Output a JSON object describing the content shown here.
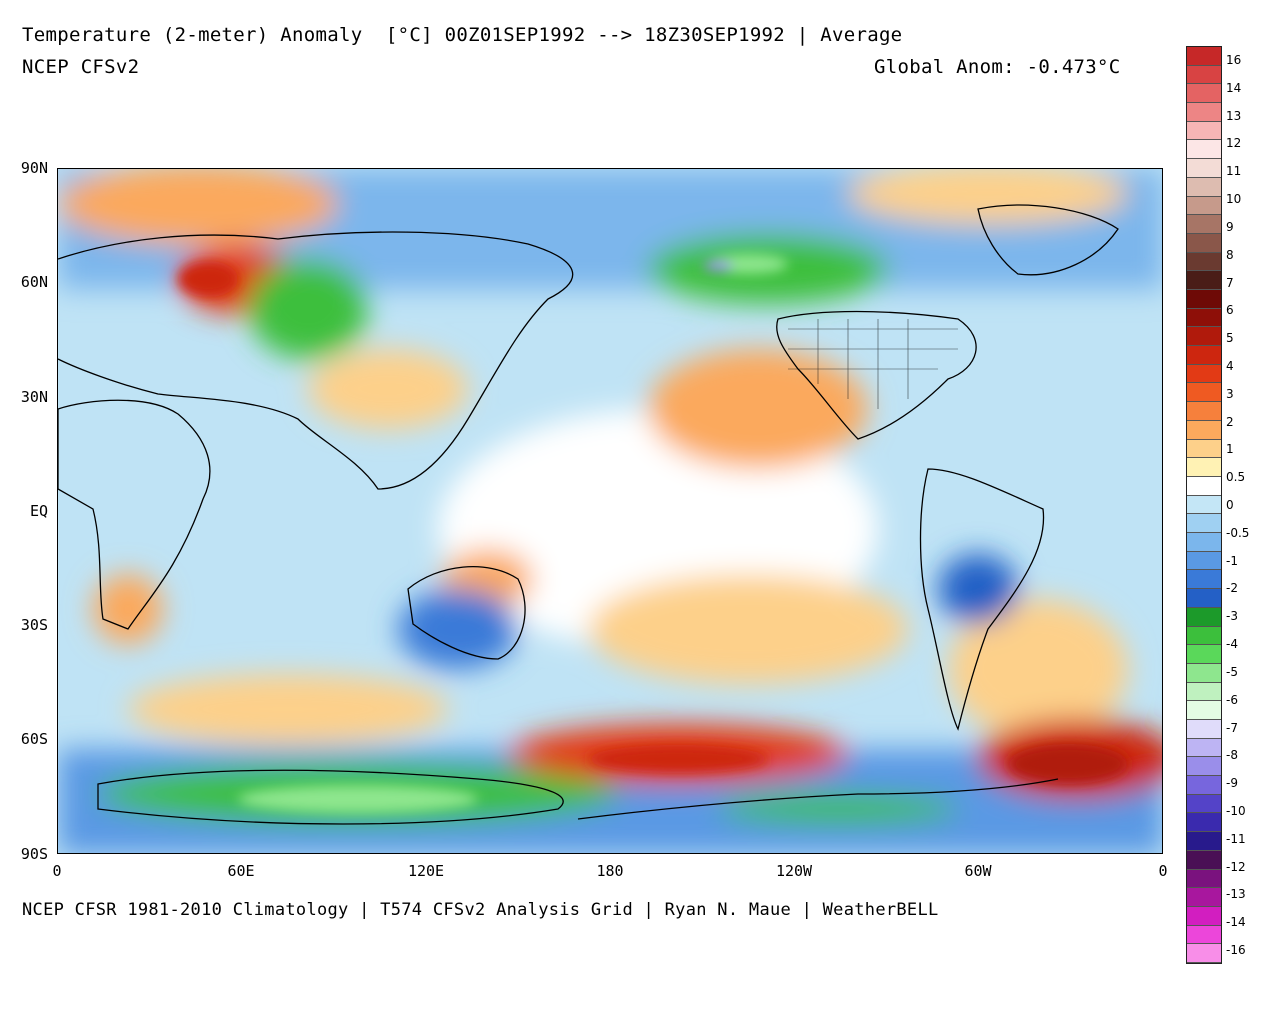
{
  "header": {
    "title": "Temperature (2-meter) Anomaly  [°C] 00Z01SEP1992 --> 18Z30SEP1992 | Average",
    "model": "NCEP CFSv2",
    "global_anom": "Global Anom: -0.473°C"
  },
  "footer": "NCEP CFSR 1981-2010 Climatology | T574 CFSv2 Analysis Grid | Ryan N. Maue | WeatherBELL",
  "axes": {
    "lat_labels": [
      "90N",
      "60N",
      "30N",
      "EQ",
      "30S",
      "60S",
      "90S"
    ],
    "lon_labels": [
      "0",
      "60E",
      "120E",
      "180",
      "120W",
      "60W",
      "0"
    ]
  },
  "colorbar": {
    "labels": [
      "16",
      "14",
      "13",
      "12",
      "11",
      "10",
      "9",
      "8",
      "7",
      "6",
      "5",
      "4",
      "3",
      "2",
      "1",
      "0.5",
      "0",
      "-0.5",
      "-1",
      "-2",
      "-3",
      "-4",
      "-5",
      "-6",
      "-7",
      "-8",
      "-9",
      "-10",
      "-11",
      "-12",
      "-13",
      "-14",
      "-16"
    ],
    "colors": [
      "#c62828",
      "#d84343",
      "#e46363",
      "#ed8585",
      "#f6b5b5",
      "#fce6e6",
      "#f3dcd6",
      "#ddbcb0",
      "#c69a8b",
      "#a77566",
      "#8a574a",
      "#6a3a30",
      "#4a1d17",
      "#6e0a06",
      "#8e0f08",
      "#b01a0c",
      "#cd260f",
      "#e23a15",
      "#ef5a22",
      "#f6803c",
      "#fba95d",
      "#fdd08a",
      "#fff2b4",
      "#ffffff",
      "#c4e6f6",
      "#9fd0f2",
      "#7bb6ec",
      "#5a99e4",
      "#3a7ad8",
      "#2460c6",
      "#1c9a2a",
      "#3cbf3c",
      "#5ad85a",
      "#8ee68e",
      "#bff1bf",
      "#e4fbe4",
      "#e0dcfa",
      "#bdb4f3",
      "#9a8eea",
      "#7766dd",
      "#5443c8",
      "#3a2aae",
      "#281a8c",
      "#4a0f55",
      "#7a127e",
      "#a8179e",
      "#d21ec0",
      "#ec46da",
      "#f88ee8"
    ],
    "n_segments": 33
  },
  "map": {
    "land_theme": "coastlines-black",
    "regions": [
      {
        "name": "arctic-warm-north-atlantic",
        "color": "#ef5a22"
      },
      {
        "name": "cold-central-asia",
        "color": "#3cbf3c"
      },
      {
        "name": "cold-alaska",
        "color": "#3cbf3c"
      },
      {
        "name": "warm-east-pacific",
        "color": "#fba95d"
      },
      {
        "name": "warm-southern-ocean",
        "color": "#e23a15"
      },
      {
        "name": "cold-antarctica",
        "color": "#3cbf3c"
      }
    ]
  }
}
